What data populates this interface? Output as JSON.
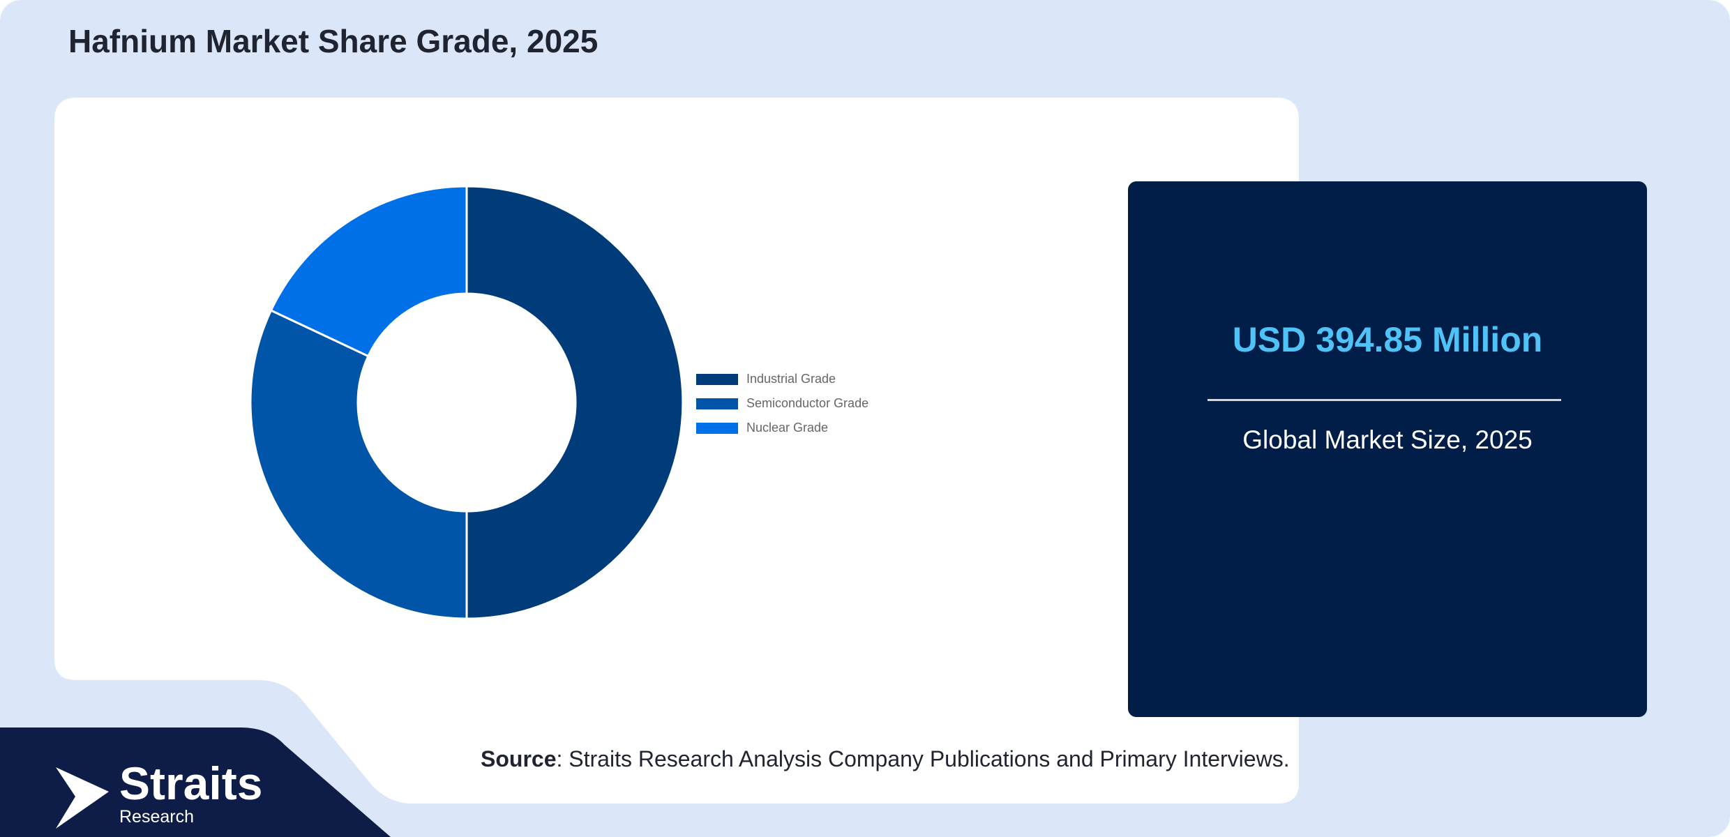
{
  "header": {
    "title": "Hafnium Market Share Grade, 2025"
  },
  "chart_data": {
    "type": "pie",
    "title": "Hafnium Market Share Grade, 2025",
    "categories": [
      "Industrial Grade",
      "Semiconductor Grade",
      "Nuclear Grade"
    ],
    "values": [
      50,
      32,
      18
    ],
    "colors": [
      "#003b7a",
      "#0055a8",
      "#0070e8"
    ],
    "legend_position": "right"
  },
  "card": {
    "value": "USD 394.85 Million",
    "label": "Global Market Size, 2025"
  },
  "footer": {
    "source_label": "Source",
    "source_text": ": Straits Research Analysis Company Publications and Primary Interviews."
  },
  "brand": {
    "name": "Straits",
    "sub": "Research"
  },
  "colors": {
    "background": "#dbe7f8",
    "panel": "#ffffff",
    "card": "#001e47",
    "corner": "#0e1d48",
    "value_accent": "#4fc3f7"
  }
}
